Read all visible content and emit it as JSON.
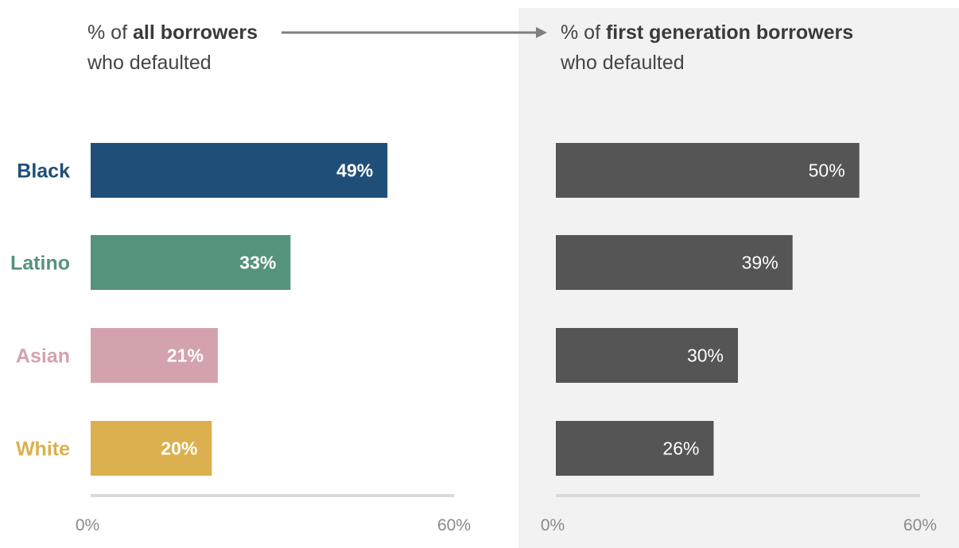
{
  "chart_data": [
    {
      "type": "bar",
      "orientation": "horizontal",
      "title_parts": [
        {
          "text": "% of ",
          "bold": false
        },
        {
          "text": "all borrowers",
          "bold": true
        }
      ],
      "subtitle": "who defaulted",
      "categories": [
        "Black",
        "Latino",
        "Asian",
        "White"
      ],
      "values": [
        49,
        33,
        21,
        20
      ],
      "value_labels": [
        "49%",
        "33%",
        "21%",
        "20%"
      ],
      "colors": [
        "#1f4e79",
        "#55937c",
        "#d4a2ad",
        "#dcb04f"
      ],
      "xlim": [
        0,
        60
      ],
      "ticks": [
        "0%",
        "60%"
      ],
      "background": "#ffffff"
    },
    {
      "type": "bar",
      "orientation": "horizontal",
      "title_parts": [
        {
          "text": "% of ",
          "bold": false
        },
        {
          "text": "first generation borrowers",
          "bold": true
        }
      ],
      "subtitle": "who defaulted",
      "categories": [
        "Black",
        "Latino",
        "Asian",
        "White"
      ],
      "values": [
        50,
        39,
        30,
        26
      ],
      "value_labels": [
        "50%",
        "39%",
        "30%",
        "26%"
      ],
      "colors": [
        "#555555",
        "#555555",
        "#555555",
        "#555555"
      ],
      "xlim": [
        0,
        60
      ],
      "ticks": [
        "0%",
        "60%"
      ],
      "background": "#f2f2f2"
    }
  ],
  "category_label_colors": [
    "#1f4e79",
    "#55937c",
    "#d4a2ad",
    "#dcb04f"
  ],
  "axis_color": "#d9d9d9",
  "arrow_color": "#7f7f7f"
}
